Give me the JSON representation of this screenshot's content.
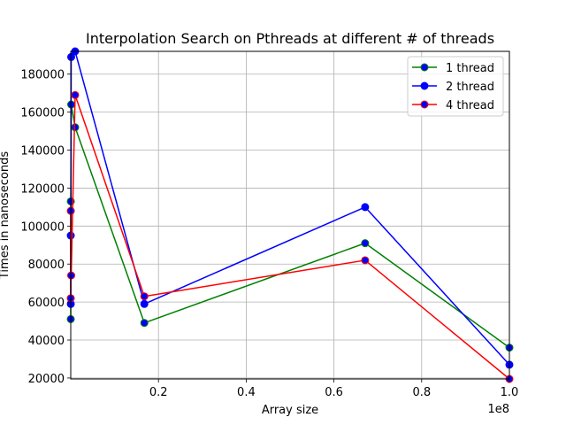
{
  "chart_data": {
    "type": "line",
    "title": "Interpolation Search on Pthreads at different # of threads",
    "xlabel": "Array size",
    "ylabel": "Times in nanoseconds",
    "x_offset_label": "1e8",
    "xlim": [
      0,
      100000000
    ],
    "ylim": [
      19500,
      192000
    ],
    "x_ticks": [
      20000000,
      40000000,
      60000000,
      80000000,
      100000000
    ],
    "x_tick_labels": [
      "0.2",
      "0.4",
      "0.6",
      "0.8",
      "1.0"
    ],
    "y_ticks": [
      20000,
      40000,
      60000,
      80000,
      100000,
      120000,
      140000,
      160000,
      180000
    ],
    "y_tick_labels": [
      "20000",
      "40000",
      "60000",
      "80000",
      "100000",
      "120000",
      "140000",
      "160000",
      "180000"
    ],
    "grid": true,
    "legend_position": "top-right",
    "x": [
      1000,
      10000,
      100000,
      1000000,
      16777216,
      67108864,
      100000000
    ],
    "series": [
      {
        "name": "1 thread",
        "line_color": "#008000",
        "marker_color": "#0000ff",
        "values": [
          51000,
          113000,
          164000,
          152000,
          49000,
          91000,
          36000
        ]
      },
      {
        "name": "2 thread",
        "line_color": "#0000ff",
        "marker_color": "#0000ff",
        "values": [
          95000,
          59000,
          189000,
          192000,
          59000,
          110000,
          27000
        ]
      },
      {
        "name": "4 thread",
        "line_color": "#ff0000",
        "marker_color": "#0000ff",
        "values": [
          62000,
          108000,
          74000,
          169000,
          63000,
          82000,
          19500
        ]
      }
    ]
  }
}
